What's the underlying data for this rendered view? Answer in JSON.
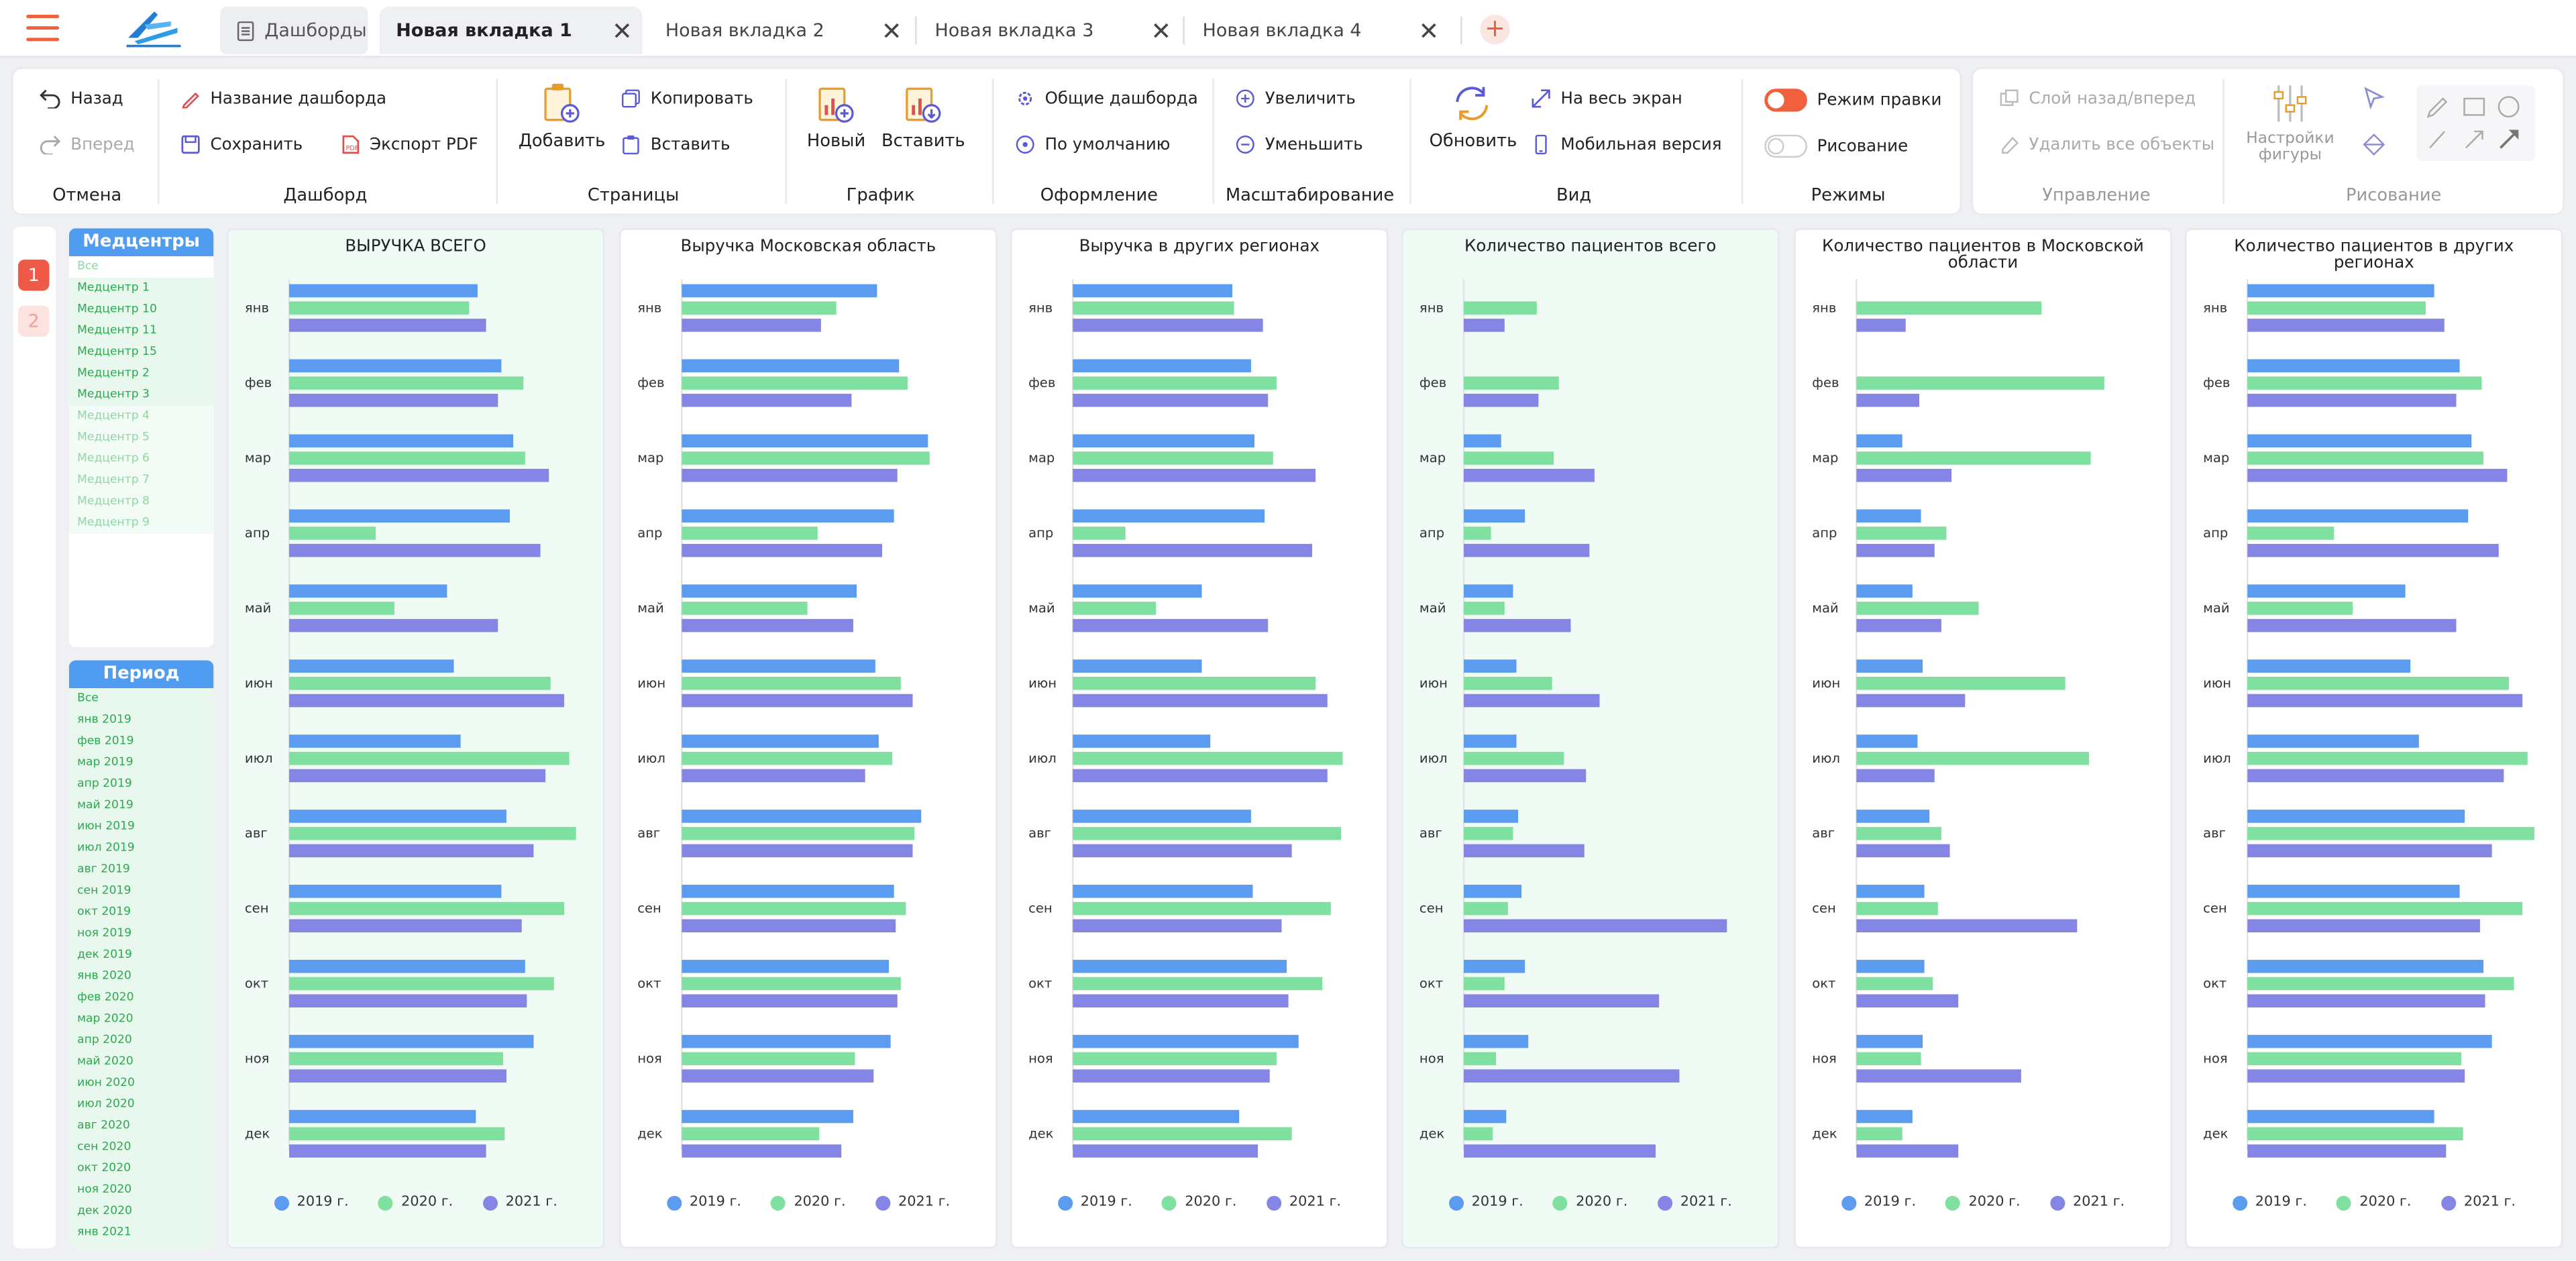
{
  "tabs": {
    "dashboards": "Дашборды",
    "items": [
      "Новая вкладка 1",
      "Новая вкладка 2",
      "Новая вкладка 3",
      "Новая вкладка 4"
    ]
  },
  "toolbar": {
    "back": "Назад",
    "forward": "Вперед",
    "group_cancel": "Отмена",
    "dash_name": "Название дашборда",
    "save": "Сохранить",
    "export_pdf": "Экспорт PDF",
    "group_dashboard": "Дашборд",
    "add": "Добавить",
    "copy": "Копировать",
    "paste_page": "Вставить",
    "group_pages": "Страницы",
    "new": "Новый",
    "paste_chart": "Вставить",
    "group_chart": "График",
    "common_dashboards": "Общие дашборда",
    "default": "По умолчанию",
    "group_design": "Оформление",
    "zoom_in": "Увеличить",
    "zoom_out": "Уменьшить",
    "group_scale": "Масштабирование",
    "refresh": "Обновить",
    "fullscreen": "На весь экран",
    "mobile": "Мобильная версия",
    "group_view": "Вид",
    "edit_mode": "Режим правки",
    "drawing": "Рисование",
    "group_modes": "Режимы",
    "layer": "Слой назад/вперед",
    "delete_all": "Удалить все объекты",
    "group_manage": "Управление",
    "shape_settings": "Настройки фигуры",
    "group_drawing": "Рисование"
  },
  "pages": [
    "1",
    "2"
  ],
  "filters": {
    "centers": {
      "title": "Медцентры",
      "items": [
        "Все",
        "Медцентр 1",
        "Медцентр 10",
        "Медцентр 11",
        "Медцентр 15",
        "Медцентр 2",
        "Медцентр 3",
        "Медцентр 4",
        "Медцентр 5",
        "Медцентр 6",
        "Медцентр 7",
        "Медцентр 8",
        "Медцентр 9"
      ],
      "selected_count": 7
    },
    "period": {
      "title": "Период",
      "items": [
        "Все",
        "янв 2019",
        "фев 2019",
        "мар 2019",
        "апр 2019",
        "май 2019",
        "июн 2019",
        "июл 2019",
        "авг 2019",
        "сен 2019",
        "окт 2019",
        "ноя 2019",
        "дек 2019",
        "янв 2020",
        "фев 2020",
        "мар 2020",
        "апр 2020",
        "май 2020",
        "июн 2020",
        "июл 2020",
        "авг 2020",
        "сен 2020",
        "окт 2020",
        "ноя 2020",
        "дек 2020",
        "янв 2021"
      ]
    }
  },
  "colors": {
    "s2019": "#5b9cf0",
    "s2020": "#7fe0a0",
    "s2021": "#8585e6",
    "accent": "#f0603c",
    "filter_head": "#4f9cf0"
  },
  "chart_data": [
    {
      "type": "bar",
      "title": "ВЫРУЧКА ВСЕГО",
      "categories": [
        "янв",
        "фев",
        "мар",
        "апр",
        "май",
        "июн",
        "июл",
        "авг",
        "сен",
        "окт",
        "ноя",
        "дек"
      ],
      "series": [
        {
          "name": "2019 г.",
          "values": [
            111,
            125,
            132,
            130,
            93,
            97,
            101,
            128,
            125,
            139,
            144,
            110
          ]
        },
        {
          "name": "2020 г.",
          "values": [
            106,
            138,
            139,
            51,
            62,
            154,
            165,
            169,
            162,
            156,
            126,
            127
          ]
        },
        {
          "name": "2021 г.",
          "values": [
            116,
            123,
            153,
            148,
            123,
            162,
            151,
            144,
            137,
            140,
            128,
            116
          ]
        }
      ],
      "xlim": [
        0,
        180
      ]
    },
    {
      "type": "bar",
      "title": "Выручка Московская область",
      "categories": [
        "янв",
        "фев",
        "мар",
        "апр",
        "май",
        "июн",
        "июл",
        "авг",
        "сен",
        "окт",
        "ноя",
        "дек"
      ],
      "series": [
        {
          "name": "2019 г.",
          "values": [
            115,
            128,
            145,
            125,
            103,
            114,
            116,
            141,
            125,
            122,
            123,
            101
          ]
        },
        {
          "name": "2020 г.",
          "values": [
            91,
            133,
            146,
            80,
            74,
            129,
            124,
            137,
            132,
            129,
            102,
            81
          ]
        },
        {
          "name": "2021 г.",
          "values": [
            82,
            100,
            127,
            118,
            101,
            136,
            108,
            136,
            126,
            127,
            113,
            94
          ]
        }
      ],
      "xlim": [
        0,
        180
      ]
    },
    {
      "type": "bar",
      "title": "Выручка в других регионах",
      "categories": [
        "янв",
        "фев",
        "мар",
        "апр",
        "май",
        "июн",
        "июл",
        "авг",
        "сен",
        "окт",
        "ноя",
        "дек"
      ],
      "series": [
        {
          "name": "2019 г.",
          "values": [
            94,
            105,
            107,
            113,
            76,
            76,
            81,
            105,
            106,
            126,
            133,
            98
          ]
        },
        {
          "name": "2020 г.",
          "values": [
            95,
            120,
            118,
            31,
            49,
            143,
            159,
            158,
            152,
            147,
            120,
            129
          ]
        },
        {
          "name": "2021 г.",
          "values": [
            112,
            115,
            143,
            141,
            115,
            150,
            150,
            129,
            123,
            127,
            116,
            109
          ]
        }
      ],
      "xlim": [
        0,
        180
      ]
    },
    {
      "type": "bar",
      "title": "Количество пациентов всего",
      "categories": [
        "янв",
        "фев",
        "мар",
        "апр",
        "май",
        "июн",
        "июл",
        "авг",
        "сен",
        "окт",
        "ноя",
        "дек"
      ],
      "series": [
        {
          "name": "2019 г.",
          "values": [
            0,
            0,
            22,
            36,
            29,
            31,
            31,
            32,
            34,
            36,
            38,
            25
          ]
        },
        {
          "name": "2020 г.",
          "values": [
            43,
            56,
            53,
            16,
            24,
            52,
            59,
            29,
            26,
            24,
            19,
            17
          ]
        },
        {
          "name": "2021 г.",
          "values": [
            24,
            44,
            77,
            74,
            63,
            80,
            72,
            71,
            155,
            115,
            127,
            113
          ]
        }
      ],
      "xlim": [
        0,
        180
      ]
    },
    {
      "type": "bar",
      "title": "Количество пациентов в Московской области",
      "categories": [
        "янв",
        "фев",
        "мар",
        "апр",
        "май",
        "июн",
        "июл",
        "авг",
        "сен",
        "окт",
        "ноя",
        "дек"
      ],
      "series": [
        {
          "name": "2019 г.",
          "values": [
            0,
            0,
            27,
            38,
            33,
            39,
            36,
            43,
            40,
            40,
            39,
            33
          ]
        },
        {
          "name": "2020 г.",
          "values": [
            109,
            146,
            138,
            53,
            72,
            123,
            137,
            50,
            48,
            45,
            38,
            27
          ]
        },
        {
          "name": "2021 г.",
          "values": [
            29,
            37,
            56,
            46,
            50,
            64,
            46,
            55,
            130,
            60,
            97,
            60
          ]
        }
      ],
      "xlim": [
        0,
        180
      ]
    },
    {
      "type": "bar",
      "title": "Количество пациентов в других регионах",
      "categories": [
        "янв",
        "фев",
        "мар",
        "апр",
        "май",
        "июн",
        "июл",
        "авг",
        "сен",
        "окт",
        "ноя",
        "дек"
      ],
      "series": [
        {
          "name": "2019 г.",
          "values": [
            110,
            125,
            132,
            130,
            93,
            96,
            101,
            128,
            125,
            139,
            144,
            110
          ]
        },
        {
          "name": "2020 г.",
          "values": [
            105,
            138,
            139,
            51,
            62,
            154,
            165,
            169,
            162,
            157,
            126,
            127
          ]
        },
        {
          "name": "2021 г.",
          "values": [
            116,
            123,
            153,
            148,
            123,
            162,
            151,
            144,
            137,
            140,
            128,
            117
          ]
        }
      ],
      "xlim": [
        0,
        180
      ]
    }
  ]
}
